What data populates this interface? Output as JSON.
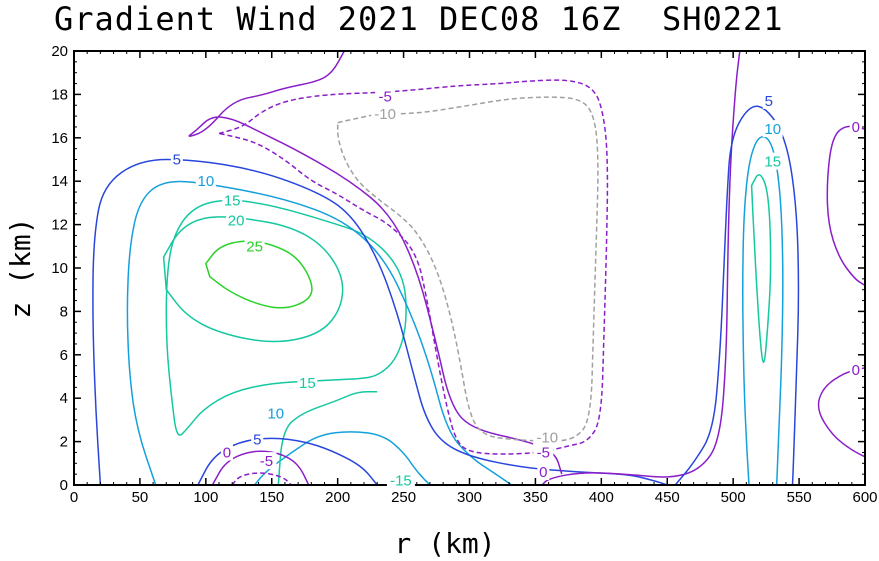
{
  "title": "Gradient Wind 2021 DEC08 16Z  SH0221",
  "chart_data": {
    "type": "contour",
    "title": "Gradient Wind 2021 DEC08 16Z  SH0221",
    "xlabel": "r (km)",
    "ylabel": "z (km)",
    "xlim": [
      0,
      600
    ],
    "ylim": [
      0,
      20
    ],
    "x_ticks": [
      "0",
      "50",
      "100",
      "150",
      "200",
      "250",
      "300",
      "350",
      "400",
      "450",
      "500",
      "550",
      "600"
    ],
    "y_ticks": [
      "0",
      "2",
      "4",
      "6",
      "8",
      "10",
      "12",
      "14",
      "16",
      "18",
      "20"
    ],
    "contour_levels": [
      {
        "level": "-10",
        "color": "#a0a0a0",
        "style": "dashed"
      },
      {
        "level": "-5",
        "color": "#8a1ec8",
        "style": "dashed"
      },
      {
        "level": "0",
        "color": "#8a1ec8",
        "style": "solid"
      },
      {
        "level": "5",
        "color": "#2846dc",
        "style": "solid"
      },
      {
        "level": "10",
        "color": "#14a0dc",
        "style": "solid"
      },
      {
        "level": "15",
        "color": "#14c8a0",
        "style": "solid"
      },
      {
        "level": "20",
        "color": "#14c8a0",
        "style": "solid"
      },
      {
        "level": "25",
        "color": "#28d228",
        "style": "solid"
      }
    ],
    "contour_labels": [
      {
        "text": "25",
        "x": 137,
        "y": 11.0,
        "color": "#28d228"
      },
      {
        "text": "20",
        "x": 123,
        "y": 12.2,
        "color": "#14c8a0"
      },
      {
        "text": "15",
        "x": 120,
        "y": 13.1,
        "color": "#14c8a0"
      },
      {
        "text": "10",
        "x": 100,
        "y": 14.0,
        "color": "#14a0dc"
      },
      {
        "text": "5",
        "x": 78,
        "y": 15.0,
        "color": "#2846dc"
      },
      {
        "text": "15",
        "x": 177,
        "y": 4.7,
        "color": "#14c8a0"
      },
      {
        "text": "10",
        "x": 153,
        "y": 3.3,
        "color": "#14a0dc"
      },
      {
        "text": "5",
        "x": 139,
        "y": 2.1,
        "color": "#2846dc"
      },
      {
        "text": "0",
        "x": 116,
        "y": 1.5,
        "color": "#8a1ec8"
      },
      {
        "text": "-5",
        "x": 146,
        "y": 1.1,
        "color": "#8a1ec8"
      },
      {
        "text": "-15",
        "x": 248,
        "y": 0.2,
        "color": "#14c8a0"
      },
      {
        "text": "-5",
        "x": 236,
        "y": 17.9,
        "color": "#8a1ec8"
      },
      {
        "text": "-10",
        "x": 236,
        "y": 17.1,
        "color": "#a0a0a0"
      },
      {
        "text": "-10",
        "x": 359,
        "y": 2.2,
        "color": "#a0a0a0"
      },
      {
        "text": "-5",
        "x": 356,
        "y": 1.5,
        "color": "#8a1ec8"
      },
      {
        "text": "0",
        "x": 356,
        "y": 0.6,
        "color": "#8a1ec8"
      },
      {
        "text": "5",
        "x": 527,
        "y": 17.7,
        "color": "#2846dc"
      },
      {
        "text": "10",
        "x": 530,
        "y": 16.4,
        "color": "#14a0dc"
      },
      {
        "text": "15",
        "x": 530,
        "y": 14.9,
        "color": "#14c8a0"
      },
      {
        "text": "0",
        "x": 593,
        "y": 16.5,
        "color": "#8a1ec8"
      },
      {
        "text": "0",
        "x": 593,
        "y": 5.3,
        "color": "#8a1ec8"
      }
    ],
    "grid": false
  }
}
